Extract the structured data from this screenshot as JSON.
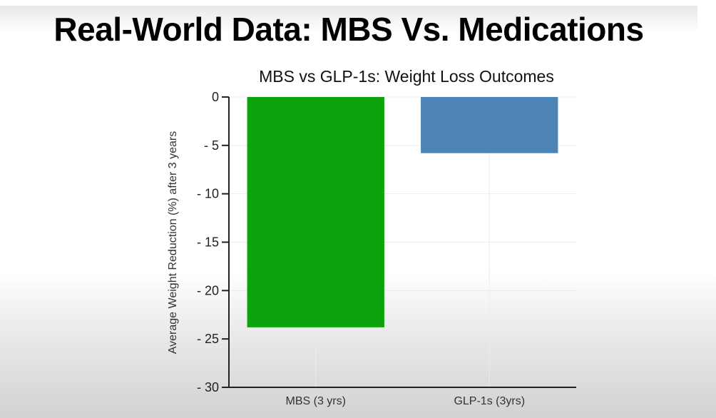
{
  "slide": {
    "title": "Real-World Data: MBS Vs. Medications"
  },
  "chart_data": {
    "type": "bar",
    "title": "MBS vs GLP-1s: Weight Loss Outcomes",
    "xlabel": "",
    "ylabel": "Average Weight Reduction (%) after 3 years",
    "categories": [
      "MBS (3 yrs)",
      "GLP-1s (3yrs)"
    ],
    "values": [
      -23.8,
      -5.8
    ],
    "colors": [
      "#04a004",
      "#4580b3"
    ],
    "ylim": [
      -30,
      0
    ],
    "yticks": [
      0,
      -5,
      -10,
      -15,
      -20,
      -25,
      -30
    ],
    "ytick_labels": [
      "0",
      "- 5",
      "- 10",
      "- 15",
      "- 20",
      "- 25",
      "- 30"
    ],
    "grid": true,
    "legend": "none"
  }
}
